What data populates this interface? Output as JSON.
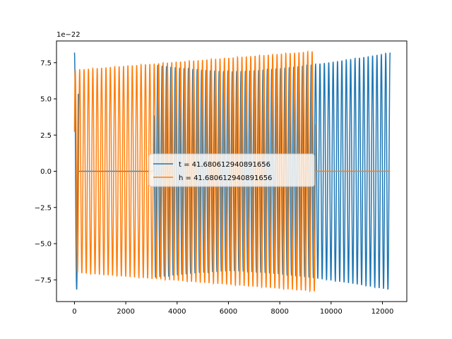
{
  "chart_data": {
    "type": "line",
    "title": "",
    "xlabel": "",
    "ylabel": "",
    "y_offset_label": "1e−22",
    "xlim": [
      -700,
      12950
    ],
    "ylim": [
      -9.0,
      9.0
    ],
    "x_ticks": [
      0,
      2000,
      4000,
      6000,
      8000,
      10000,
      12000
    ],
    "x_tick_labels": [
      "0",
      "2000",
      "4000",
      "6000",
      "8000",
      "10000",
      "12000"
    ],
    "y_ticks": [
      -7.5,
      -5.0,
      -2.5,
      0.0,
      2.5,
      5.0,
      7.5
    ],
    "y_tick_labels": [
      "−7.5",
      "−5.0",
      "−2.5",
      "0.0",
      "2.5",
      "5.0",
      "7.5"
    ],
    "grid": false,
    "legend_position": "center",
    "series": [
      {
        "name": "t = 41.680612940891656",
        "color": "#1f77b4",
        "x_range": [
          0,
          12300
        ],
        "cycles": 72,
        "amplitude_start": 8.2,
        "amplitude_min": 6.9,
        "amplitude_end": 8.2,
        "phase_flat_from": 3100
      },
      {
        "name": "h = 41.680612940891656",
        "color": "#ff7f0e",
        "x_range": [
          0,
          9400
        ],
        "cycles": 55,
        "amplitude_start": 7.0,
        "amplitude_end": 8.3,
        "flat_after_x": 9400,
        "flat_until_x": 12300
      }
    ]
  }
}
